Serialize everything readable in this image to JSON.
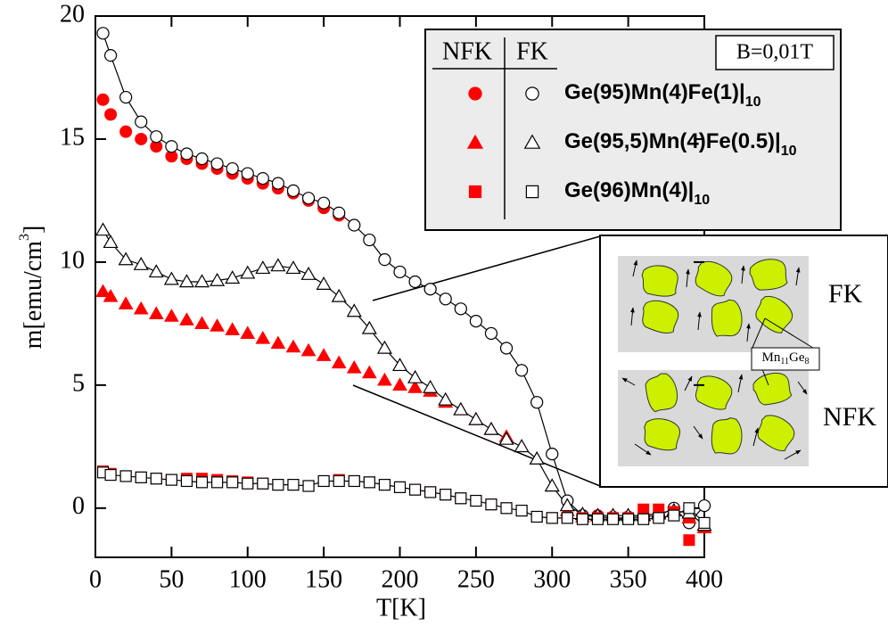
{
  "chart_data": {
    "type": "scatter",
    "xlabel": "T[K]",
    "ylabel": {
      "text": "m[emu/cm",
      "superscript": "3",
      "end": "]"
    },
    "xlim": [
      0,
      400
    ],
    "xticks": [
      0,
      50,
      100,
      150,
      200,
      250,
      300,
      350,
      400
    ],
    "ylim": [
      -2,
      20
    ],
    "yticks": [
      0,
      5,
      10,
      15,
      20
    ],
    "legend_columns": [
      "NFK",
      "FK"
    ],
    "annotation": "B=0,01T",
    "x": [
      5,
      10,
      20,
      30,
      40,
      50,
      60,
      70,
      80,
      90,
      100,
      110,
      120,
      130,
      140,
      150,
      160,
      170,
      180,
      190,
      200,
      210,
      220,
      230,
      240,
      250,
      260,
      270,
      280,
      290,
      300,
      310,
      320,
      330,
      340,
      350,
      360,
      370,
      380,
      390,
      400
    ],
    "series": [
      {
        "name": "Ge(95)Mn(4)Fe(1)|",
        "name_subscript": "10",
        "marker": "circle",
        "nfk": {
          "color": "#ff0000",
          "values": [
            16.6,
            16.0,
            15.3,
            15.0,
            14.7,
            14.3,
            14.2,
            14.0,
            13.8,
            13.6,
            13.4,
            13.2,
            13.0,
            12.8,
            12.5,
            12.2,
            11.9,
            11.5,
            10.9,
            10.1,
            9.6,
            9.2,
            8.9,
            8.5,
            8.1,
            7.6,
            7.1,
            6.5,
            5.6,
            4.3,
            2.2,
            0.3,
            -0.3,
            -0.3,
            -0.35,
            -0.35,
            -0.3,
            -0.3,
            -0.2,
            -0.5,
            null
          ]
        },
        "fk": {
          "color": "#000000",
          "values": [
            19.3,
            18.4,
            16.7,
            15.7,
            15.1,
            14.7,
            14.4,
            14.2,
            14.0,
            13.8,
            13.6,
            13.4,
            13.2,
            12.9,
            12.6,
            12.4,
            12.0,
            11.5,
            10.9,
            10.1,
            9.6,
            9.2,
            8.9,
            8.5,
            8.1,
            7.6,
            7.1,
            6.5,
            5.6,
            4.3,
            2.2,
            0.3,
            -0.3,
            -0.35,
            -0.4,
            -0.4,
            -0.35,
            -0.3,
            0.0,
            -0.6,
            0.1
          ]
        }
      },
      {
        "name": "Ge(95,5)Mn(4)Fe(0.5)|",
        "name_subscript": "10",
        "marker": "triangle",
        "nfk": {
          "color": "#ff0000",
          "values": [
            8.8,
            8.6,
            8.3,
            8.1,
            7.9,
            7.8,
            7.65,
            7.5,
            7.4,
            7.25,
            7.1,
            6.9,
            6.7,
            6.55,
            6.4,
            6.2,
            5.9,
            5.7,
            5.5,
            5.2,
            5.0,
            4.9,
            4.75,
            4.3,
            4.0,
            3.6,
            3.2,
            2.9,
            2.5,
            2.0,
            0.9,
            -0.1,
            -0.35,
            -0.3,
            -0.3,
            -0.3,
            -0.3,
            -0.25,
            -0.1,
            -0.4,
            -0.8
          ]
        },
        "fk": {
          "color": "#000000",
          "values": [
            11.3,
            10.8,
            10.1,
            9.9,
            9.6,
            9.3,
            9.2,
            9.2,
            9.25,
            9.35,
            9.55,
            9.75,
            9.85,
            9.75,
            9.5,
            9.1,
            8.6,
            8.0,
            7.3,
            6.5,
            5.8,
            5.3,
            4.9,
            4.4,
            4.0,
            3.6,
            3.2,
            2.8,
            2.5,
            2.0,
            0.9,
            0.1,
            -0.25,
            -0.3,
            -0.3,
            -0.3,
            -0.3,
            -0.2,
            -0.1,
            -0.2,
            -0.7
          ]
        }
      },
      {
        "name": "Ge(96)Mn(4)|",
        "name_subscript": "10",
        "marker": "square",
        "nfk": {
          "color": "#ff0000",
          "values": [
            1.5,
            1.4,
            1.3,
            1.25,
            1.2,
            1.15,
            1.2,
            1.2,
            1.15,
            1.1,
            1.05,
            1.0,
            0.95,
            0.95,
            0.9,
            1.1,
            1.15,
            1.1,
            1.05,
            0.95,
            0.85,
            0.75,
            0.65,
            0.55,
            0.4,
            0.3,
            0.15,
            0.0,
            -0.1,
            -0.35,
            -0.4,
            -0.4,
            -0.4,
            -0.4,
            -0.4,
            -0.4,
            -0.05,
            -0.05,
            -0.15,
            -1.3,
            null
          ]
        },
        "fk": {
          "color": "#000000",
          "values": [
            1.45,
            1.35,
            1.3,
            1.25,
            1.2,
            1.15,
            1.1,
            1.05,
            1.05,
            1.05,
            1.0,
            1.0,
            0.95,
            0.95,
            0.9,
            1.1,
            1.1,
            1.1,
            1.05,
            0.95,
            0.85,
            0.75,
            0.65,
            0.55,
            0.4,
            0.3,
            0.15,
            0.0,
            -0.1,
            -0.35,
            -0.4,
            -0.4,
            -0.45,
            -0.45,
            -0.45,
            -0.45,
            -0.45,
            -0.4,
            -0.3,
            0.0,
            -0.6
          ]
        }
      }
    ],
    "inset": {
      "labels": [
        "FK",
        "NFK"
      ],
      "phase": {
        "text": "Mn",
        "sub1": "11",
        "mid": "Ge",
        "sub2": "8"
      }
    }
  }
}
